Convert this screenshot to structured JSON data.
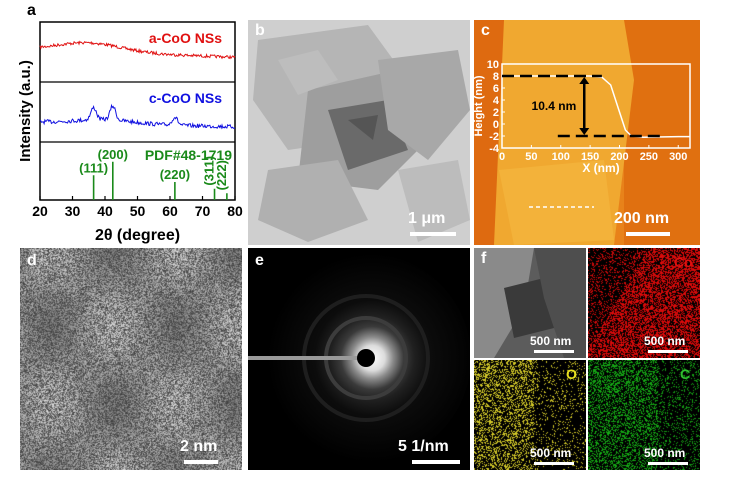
{
  "panels": {
    "a": {
      "label": "a"
    },
    "b": {
      "label": "b",
      "scale": "1 μm"
    },
    "c": {
      "label": "c",
      "scale": "200 nm"
    },
    "d": {
      "label": "d",
      "scale": "2 nm"
    },
    "e": {
      "label": "e",
      "scale": "5  1/nm"
    },
    "f": {
      "label": "f",
      "tiles": [
        {
          "element": "",
          "scale": "500 nm"
        },
        {
          "element": "Co",
          "scale": "500 nm",
          "color": "#e01010"
        },
        {
          "element": "O",
          "scale": "500 nm",
          "color": "#e8e020"
        },
        {
          "element": "C",
          "scale": "500 nm",
          "color": "#30c030"
        }
      ]
    }
  },
  "chart_data": [
    {
      "type": "line",
      "panel": "a",
      "xlabel": "2θ (degree)",
      "ylabel": "Intensity (a.u.)",
      "xlim": [
        20,
        80
      ],
      "xticks": [
        20,
        30,
        40,
        50,
        60,
        70,
        80
      ],
      "series": [
        {
          "name": "a-CoO NSs",
          "color": "#e01010"
        },
        {
          "name": "c-CoO NSs",
          "color": "#1010e0",
          "peaks": [
            36.5,
            42.4,
            61.5
          ]
        }
      ],
      "reference": {
        "name": "PDF#48-1719",
        "color": "#1a8a1a",
        "lines": [
          {
            "x": 36.5,
            "label": "(111)",
            "height": 0.55
          },
          {
            "x": 42.4,
            "label": "(200)",
            "height": 0.85
          },
          {
            "x": 61.5,
            "label": "(220)",
            "height": 0.4
          },
          {
            "x": 73.7,
            "label": "(311)",
            "height": 0.25
          },
          {
            "x": 77.5,
            "label": "(222)",
            "height": 0.15
          }
        ]
      }
    },
    {
      "type": "line",
      "panel": "c-inset",
      "xlabel": "X (nm)",
      "ylabel": "Height (nm)",
      "xlim": [
        0,
        320
      ],
      "ylim": [
        -4,
        10
      ],
      "xticks": [
        0,
        50,
        100,
        150,
        200,
        250,
        300
      ],
      "yticks": [
        -4,
        -2,
        0,
        2,
        4,
        6,
        8,
        10
      ],
      "annotation": "10.4 nm",
      "x": [
        0,
        150,
        170,
        185,
        200,
        210,
        220,
        240,
        300,
        320
      ],
      "y": [
        8,
        8,
        7.8,
        6.5,
        2,
        -1,
        -2,
        -2.2,
        -2.1,
        -2.1
      ]
    }
  ]
}
